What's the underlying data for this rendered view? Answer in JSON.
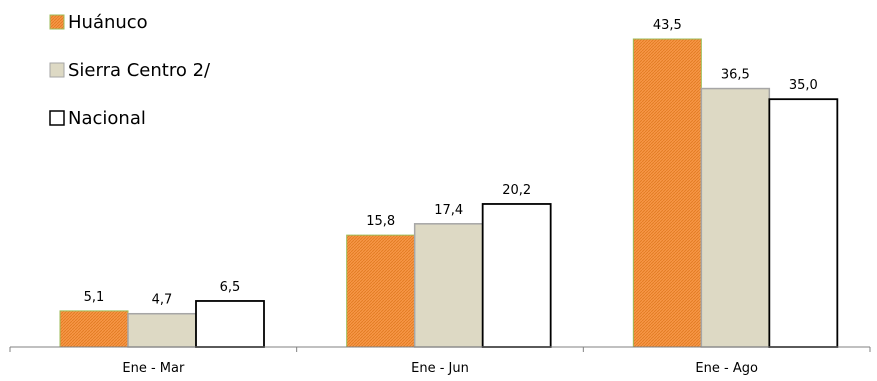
{
  "chart_data": {
    "type": "bar",
    "categories": [
      "Ene - Mar",
      "Ene - Jun",
      "Ene - Ago"
    ],
    "series": [
      {
        "name": "Huánuco",
        "values": [
          5.1,
          15.8,
          43.5
        ],
        "color": "#F79646",
        "pattern": "orange-hatch"
      },
      {
        "name": "Sierra Centro 2/",
        "values": [
          4.7,
          17.4,
          36.5
        ],
        "color": "#DDD9C4"
      },
      {
        "name": "Nacional",
        "values": [
          6.5,
          20.2,
          35.0
        ],
        "color": "#FFFFFF"
      }
    ],
    "data_labels": [
      [
        "5,1",
        "15,8",
        "43,5"
      ],
      [
        "4,7",
        "17,4",
        "36,5"
      ],
      [
        "6,5",
        "20,2",
        "35,0"
      ]
    ],
    "ylim": [
      0,
      45
    ],
    "grid": false,
    "legend_position": "top-left"
  }
}
